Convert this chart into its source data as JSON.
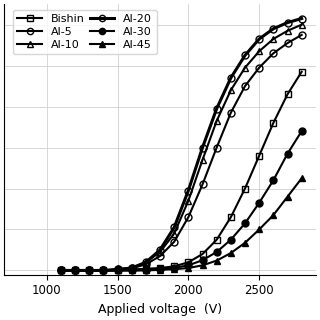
{
  "xlabel": "Applied voltage  (V)",
  "xlim": [
    700,
    2900
  ],
  "ylim": [
    -0.02,
    1.3
  ],
  "xticks": [
    1000,
    1500,
    2000,
    2500
  ],
  "series": {
    "Bishin": {
      "x": [
        1100,
        1200,
        1300,
        1400,
        1500,
        1600,
        1700,
        1800,
        1900,
        2000,
        2100,
        2200,
        2300,
        2400,
        2500,
        2600,
        2700,
        2800
      ],
      "y": [
        0.0,
        0.0,
        0.0,
        0.0,
        0.0,
        0.005,
        0.008,
        0.012,
        0.02,
        0.04,
        0.08,
        0.15,
        0.26,
        0.4,
        0.56,
        0.72,
        0.86,
        0.97
      ],
      "marker": "s",
      "fillstyle": "none",
      "linewidth": 1.5,
      "markersize": 5
    },
    "Al-5": {
      "x": [
        1100,
        1200,
        1300,
        1400,
        1500,
        1600,
        1700,
        1800,
        1900,
        2000,
        2100,
        2200,
        2300,
        2400,
        2500,
        2600,
        2700,
        2800
      ],
      "y": [
        0.0,
        0.0,
        0.0,
        0.0,
        0.005,
        0.01,
        0.03,
        0.07,
        0.14,
        0.26,
        0.42,
        0.6,
        0.77,
        0.9,
        0.99,
        1.06,
        1.11,
        1.15
      ],
      "marker": "o",
      "fillstyle": "none",
      "linewidth": 1.5,
      "markersize": 5
    },
    "Al-10": {
      "x": [
        1100,
        1200,
        1300,
        1400,
        1500,
        1600,
        1700,
        1800,
        1900,
        2000,
        2100,
        2200,
        2300,
        2400,
        2500,
        2600,
        2700,
        2800
      ],
      "y": [
        0.0,
        0.0,
        0.0,
        0.0,
        0.005,
        0.012,
        0.04,
        0.09,
        0.18,
        0.34,
        0.54,
        0.73,
        0.88,
        0.99,
        1.07,
        1.13,
        1.17,
        1.2
      ],
      "marker": "^",
      "fillstyle": "none",
      "linewidth": 1.5,
      "markersize": 5
    },
    "Al-20": {
      "x": [
        1100,
        1200,
        1300,
        1400,
        1500,
        1600,
        1700,
        1800,
        1900,
        2000,
        2100,
        2200,
        2300,
        2400,
        2500,
        2600,
        2700,
        2800
      ],
      "y": [
        0.0,
        0.0,
        0.0,
        0.0,
        0.005,
        0.012,
        0.04,
        0.1,
        0.21,
        0.39,
        0.6,
        0.79,
        0.94,
        1.05,
        1.13,
        1.18,
        1.21,
        1.23
      ],
      "marker": "o",
      "fillstyle": "none",
      "linewidth": 2.2,
      "markersize": 5
    },
    "Al-30": {
      "x": [
        1100,
        1200,
        1300,
        1400,
        1500,
        1600,
        1700,
        1800,
        1900,
        2000,
        2100,
        2200,
        2300,
        2400,
        2500,
        2600,
        2700,
        2800
      ],
      "y": [
        0.0,
        0.0,
        0.0,
        0.0,
        0.0,
        0.0,
        0.003,
        0.007,
        0.013,
        0.025,
        0.05,
        0.09,
        0.15,
        0.23,
        0.33,
        0.44,
        0.57,
        0.68
      ],
      "marker": "o",
      "fillstyle": "full",
      "linewidth": 1.5,
      "markersize": 5
    },
    "Al-45": {
      "x": [
        1100,
        1200,
        1300,
        1400,
        1500,
        1600,
        1700,
        1800,
        1900,
        2000,
        2100,
        2200,
        2300,
        2400,
        2500,
        2600,
        2700,
        2800
      ],
      "y": [
        0.0,
        0.0,
        0.0,
        0.0,
        0.0,
        0.0,
        0.0,
        0.003,
        0.006,
        0.012,
        0.025,
        0.048,
        0.085,
        0.135,
        0.2,
        0.27,
        0.36,
        0.45
      ],
      "marker": "^",
      "fillstyle": "full",
      "linewidth": 1.5,
      "markersize": 5
    }
  },
  "legend_order": [
    "Bishin",
    "Al-5",
    "Al-10",
    "Al-20",
    "Al-30",
    "Al-45"
  ],
  "legend_ncol2_order": [
    "Bishin",
    "Al-5",
    "Al-10",
    "Al-20",
    "Al-30",
    "Al-45"
  ],
  "grid_color": "#d0d0d0",
  "background_color": "#ffffff",
  "color": "#000000"
}
